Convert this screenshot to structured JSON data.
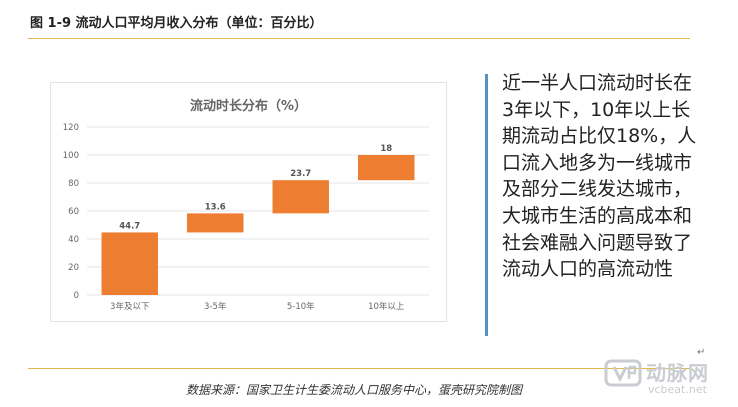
{
  "page": {
    "title": "图 1-9 流动人口平均月收入分布（单位：百分比）",
    "side_text": "近一半人口流动时长在3年以下，10年以上长期流动占比仅18%，人口流入地多为一线城市及部分二线发达城市，大城市生活的高成本和社会难融入问题导致了流动人口的高流动性",
    "return_mark": "↵",
    "source": "数据来源：国家卫生计生委流动人口服务中心，蛋壳研究院制图",
    "watermark": {
      "name": "动脉网",
      "url": "vcbeat.net"
    }
  },
  "colors": {
    "bar": "#ed7d31",
    "grid": "#e6e6e6",
    "axis_text": "#666666",
    "accent_rule": "#e0b84a",
    "side_rule": "#5b8fc7"
  },
  "chart_data": {
    "type": "bar",
    "subtype": "waterfall",
    "title": "流动时长分布（%）",
    "categories": [
      "3年及以下",
      "3-5年",
      "5-10年",
      "10年以上"
    ],
    "values": [
      44.7,
      13.6,
      23.7,
      18
    ],
    "value_labels": [
      "44.7",
      "13.6",
      "23.7",
      "18"
    ],
    "ylim": [
      0,
      120
    ],
    "yticks": [
      0,
      20,
      40,
      60,
      80,
      100,
      120
    ],
    "grid": true,
    "legend": "none"
  }
}
